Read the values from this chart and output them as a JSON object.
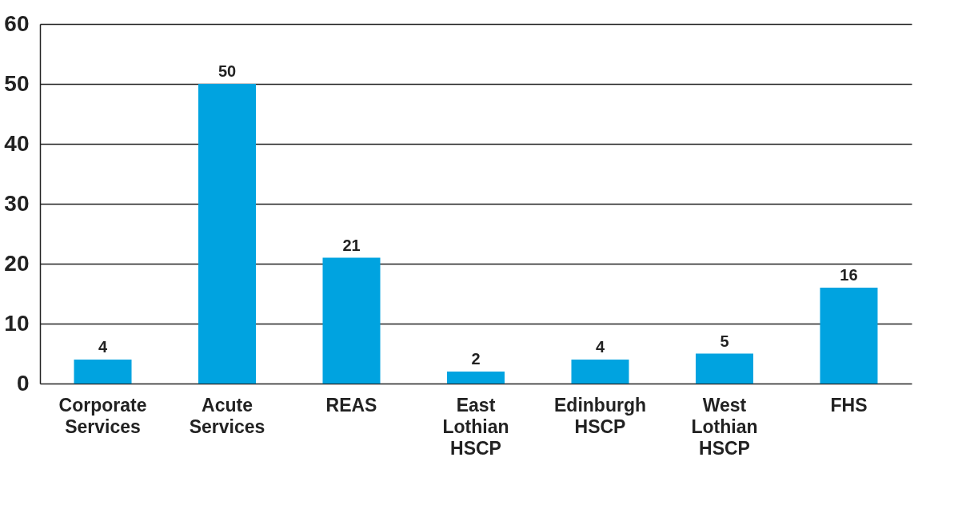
{
  "chart_data": {
    "type": "bar",
    "categories": [
      "Corporate Services",
      "Acute Services",
      "REAS",
      "East Lothian HSCP",
      "Edinburgh HSCP",
      "West Lothian HSCP",
      "FHS"
    ],
    "values": [
      4,
      50,
      21,
      2,
      4,
      5,
      16
    ],
    "color": "#00a3e0",
    "ylim": [
      0,
      60
    ],
    "yticks": [
      0,
      10,
      20,
      30,
      40,
      50,
      60
    ],
    "grid": "y",
    "data_labels": true
  }
}
